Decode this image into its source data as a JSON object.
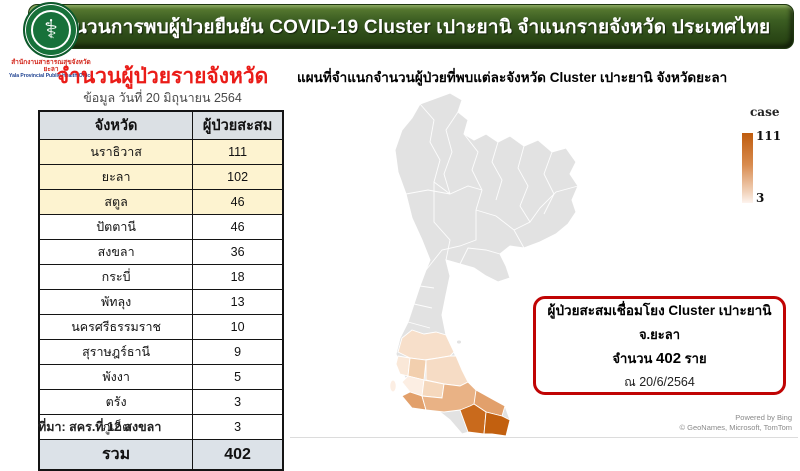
{
  "header": {
    "title": "จำนวนการพบผู้ป่วยยืนยัน COVID-19 Cluster เปาะยานิ จำแนกรายจังหวัด ประเทศไทย"
  },
  "logo": {
    "emblem_icon": "public-health-caduceus-icon",
    "emblem_glyph": "⚕",
    "org_thai": "สำนักงานสาธารณสุขจังหวัดยะลา",
    "org_en": "Yala Provincial Public Health Office"
  },
  "left_panel": {
    "title": "จำนวนผู้ป่วยรายจังหวัด",
    "subtitle": "ข้อมูล วันที่ 20 มิถุนายน 2564",
    "table": {
      "headers": [
        "จังหวัด",
        "ผู้ป่วยสะสม"
      ],
      "rows": [
        {
          "province": "นราธิวาส",
          "cases": "111",
          "highlight": true
        },
        {
          "province": "ยะลา",
          "cases": "102",
          "highlight": true
        },
        {
          "province": "สตูล",
          "cases": "46",
          "highlight": true
        },
        {
          "province": "ปัตตานี",
          "cases": "46",
          "highlight": false
        },
        {
          "province": "สงขลา",
          "cases": "36",
          "highlight": false
        },
        {
          "province": "กระบี่",
          "cases": "18",
          "highlight": false
        },
        {
          "province": "พัทลุง",
          "cases": "13",
          "highlight": false
        },
        {
          "province": "นครศรีธรรมราช",
          "cases": "10",
          "highlight": false
        },
        {
          "province": "สุราษฎร์ธานี",
          "cases": "9",
          "highlight": false
        },
        {
          "province": "พังงา",
          "cases": "5",
          "highlight": false
        },
        {
          "province": "ตรัง",
          "cases": "3",
          "highlight": false
        },
        {
          "province": "ภูเก็ต",
          "cases": "3",
          "highlight": false
        }
      ],
      "total_label": "รวม",
      "total_value": "402"
    },
    "source": "ที่มา: สคร.ที่ 12 สงขลา"
  },
  "map_panel": {
    "title": "แผนที่จำแนกจำนวนผู้ป่วยที่พบแต่ละจังหวัด  Cluster เปาะยานิ จังหวัดยะลา",
    "legend": {
      "title": "case",
      "max_label": "111",
      "min_label": "3",
      "max_color": "#bf5c0e",
      "min_color": "#fdf2ea"
    },
    "callout": {
      "line1": "ผู้ป่วยสะสมเชื่อมโยง Cluster เปาะยานิ",
      "line2": "จ.ยะลา",
      "count_prefix": "จำนวน ",
      "count_value": "402",
      "count_suffix": " ราย",
      "date_line": "ณ 20/6/2564",
      "border_color": "#c00404"
    },
    "attribution": {
      "line1": "Powered by Bing",
      "line2": "© GeoNames, Microsoft, TomTom"
    }
  },
  "chart_data": [
    {
      "type": "table",
      "title": "จำนวนผู้ป่วยรายจังหวัด",
      "subtitle": "ข้อมูล วันที่ 20 มิถุนายน 2564",
      "columns": [
        "จังหวัด",
        "ผู้ป่วยสะสม"
      ],
      "rows": [
        [
          "นราธิวาส",
          111
        ],
        [
          "ยะลา",
          102
        ],
        [
          "สตูล",
          46
        ],
        [
          "ปัตตานี",
          46
        ],
        [
          "สงขลา",
          36
        ],
        [
          "กระบี่",
          18
        ],
        [
          "พัทลุง",
          13
        ],
        [
          "นครศรีธรรมราช",
          10
        ],
        [
          "สุราษฎร์ธานี",
          9
        ],
        [
          "พังงา",
          5
        ],
        [
          "ตรัง",
          3
        ],
        [
          "ภูเก็ต",
          3
        ]
      ],
      "total": [
        "รวม",
        402
      ]
    },
    {
      "type": "heatmap",
      "subtype": "choropleth-map-of-thailand",
      "title": "แผนที่จำแนกจำนวนผู้ป่วยที่พบแต่ละจังหวัด Cluster เปาะยานิ จังหวัดยะลา",
      "legend_label": "case",
      "value_range": [
        3,
        111
      ],
      "color_ramp": [
        "#fdf2ea",
        "#bf5c0e"
      ],
      "regions": [
        {
          "name": "นราธิวาส",
          "value": 111
        },
        {
          "name": "ยะลา",
          "value": 102
        },
        {
          "name": "สตูล",
          "value": 46
        },
        {
          "name": "ปัตตานี",
          "value": 46
        },
        {
          "name": "สงขลา",
          "value": 36
        },
        {
          "name": "กระบี่",
          "value": 18
        },
        {
          "name": "พัทลุง",
          "value": 13
        },
        {
          "name": "นครศรีธรรมราช",
          "value": 10
        },
        {
          "name": "สุราษฎร์ธานี",
          "value": 9
        },
        {
          "name": "พังงา",
          "value": 5
        },
        {
          "name": "ตรัง",
          "value": 3
        },
        {
          "name": "ภูเก็ต",
          "value": 3
        },
        {
          "name": "other-provinces",
          "value": 0
        }
      ],
      "annotation": "ผู้ป่วยสะสมเชื่อมโยง Cluster เปาะยานิ จ.ยะลา จำนวน 402 ราย ณ 20/6/2564"
    }
  ]
}
